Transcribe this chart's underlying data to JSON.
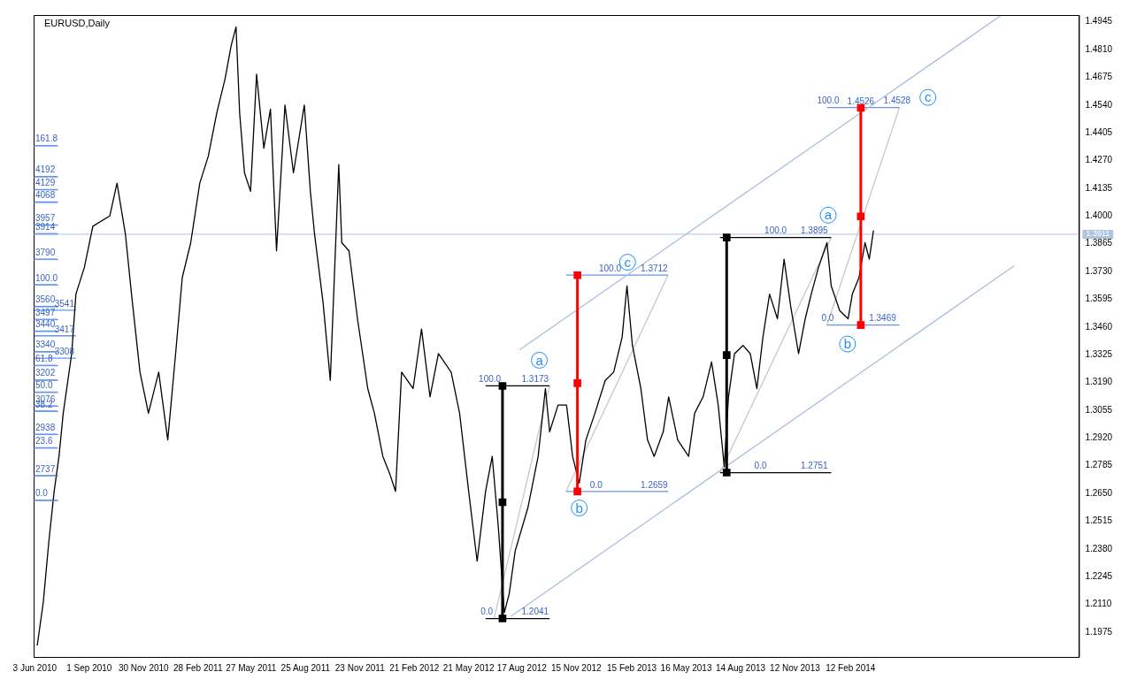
{
  "chart_data": {
    "type": "line",
    "title": "EURUSD,Daily",
    "legend": false,
    "grid": false,
    "marker": "none",
    "xlim": [
      "2010-06-01",
      "2015-02-25"
    ],
    "xticks": [
      {
        "value": "2010-06-03",
        "label": "3 Jun 2010"
      },
      {
        "value": "2010-09-01",
        "label": "1 Sep 2010"
      },
      {
        "value": "2010-11-30",
        "label": "30 Nov 2010"
      },
      {
        "value": "2011-02-28",
        "label": "28 Feb 2011"
      },
      {
        "value": "2011-05-27",
        "label": "27 May 2011"
      },
      {
        "value": "2011-08-25",
        "label": "25 Aug 2011"
      },
      {
        "value": "2011-11-23",
        "label": "23 Nov 2011"
      },
      {
        "value": "2012-02-21",
        "label": "21 Feb 2012"
      },
      {
        "value": "2012-05-21",
        "label": "21 May 2012"
      },
      {
        "value": "2012-08-17",
        "label": "17 Aug 2012"
      },
      {
        "value": "2012-11-15",
        "label": "15 Nov 2012"
      },
      {
        "value": "2013-02-15",
        "label": "15 Feb 2013"
      },
      {
        "value": "2013-05-16",
        "label": "16 May 2013"
      },
      {
        "value": "2013-08-14",
        "label": "14 Aug 2013"
      },
      {
        "value": "2013-11-12",
        "label": "12 Nov 2013"
      },
      {
        "value": "2014-02-12",
        "label": "12 Feb 2014"
      }
    ],
    "ylim": [
      1.1854,
      1.4978
    ],
    "yticks": [
      {
        "value": 1.1975,
        "label": "1.1975"
      },
      {
        "value": 1.211,
        "label": "1.2110"
      },
      {
        "value": 1.2245,
        "label": "1.2245"
      },
      {
        "value": 1.238,
        "label": "1.2380"
      },
      {
        "value": 1.2515,
        "label": "1.2515"
      },
      {
        "value": 1.265,
        "label": "1.2650"
      },
      {
        "value": 1.2785,
        "label": "1.2785"
      },
      {
        "value": 1.292,
        "label": "1.2920"
      },
      {
        "value": 1.3055,
        "label": "1.3055"
      },
      {
        "value": 1.319,
        "label": "1.3190"
      },
      {
        "value": 1.3325,
        "label": "1.3325"
      },
      {
        "value": 1.346,
        "label": "1.3460"
      },
      {
        "value": 1.3595,
        "label": "1.3595"
      },
      {
        "value": 1.373,
        "label": "1.3730"
      },
      {
        "value": 1.3865,
        "label": "1.3865"
      },
      {
        "value": 1.4,
        "label": "1.4000"
      },
      {
        "value": 1.4135,
        "label": "1.4135"
      },
      {
        "value": 1.427,
        "label": "1.4270"
      },
      {
        "value": 1.4405,
        "label": "1.4405"
      },
      {
        "value": 1.454,
        "label": "1.4540"
      },
      {
        "value": 1.4675,
        "label": "1.4675"
      },
      {
        "value": 1.481,
        "label": "1.4810"
      },
      {
        "value": 1.4945,
        "label": "1.4945"
      }
    ],
    "series": [
      {
        "color": "#000000",
        "x": [
          "2010-06-07",
          "2010-06-17",
          "2010-06-26",
          "2010-07-05",
          "2010-07-13",
          "2010-07-20",
          "2010-08-03",
          "2010-08-10",
          "2010-08-24",
          "2010-09-07",
          "2010-10-05",
          "2010-10-17",
          "2010-10-31",
          "2010-11-10",
          "2010-11-24",
          "2010-12-08",
          "2010-12-25",
          "2011-01-09",
          "2011-01-22",
          "2011-02-02",
          "2011-02-16",
          "2011-03-03",
          "2011-03-17",
          "2011-03-31",
          "2011-04-14",
          "2011-04-24",
          "2011-05-02",
          "2011-05-08",
          "2011-05-16",
          "2011-05-26",
          "2011-06-05",
          "2011-06-17",
          "2011-06-28",
          "2011-07-08",
          "2011-07-22",
          "2011-08-05",
          "2011-08-23",
          "2011-09-02",
          "2011-09-09",
          "2011-09-23",
          "2011-10-05",
          "2011-10-19",
          "2011-10-24",
          "2011-11-05",
          "2011-11-19",
          "2011-12-06",
          "2011-12-17",
          "2011-12-31",
          "2012-01-12",
          "2012-01-21",
          "2012-01-31",
          "2012-02-19",
          "2012-03-04",
          "2012-03-18",
          "2012-04-01",
          "2012-04-22",
          "2012-05-06",
          "2012-05-21",
          "2012-06-04",
          "2012-06-18",
          "2012-06-29",
          "2012-07-09",
          "2012-07-19",
          "2012-07-27",
          "2012-08-06",
          "2012-08-27",
          "2012-09-13",
          "2012-09-25",
          "2012-10-02",
          "2012-10-16",
          "2012-10-30",
          "2012-11-09",
          "2012-11-20",
          "2012-12-01",
          "2012-12-16",
          "2013-01-02",
          "2013-01-16",
          "2013-01-30",
          "2013-02-07",
          "2013-02-16",
          "2013-03-02",
          "2013-03-13",
          "2013-03-24",
          "2013-04-08",
          "2013-04-17",
          "2013-05-02",
          "2013-05-20",
          "2013-05-30",
          "2013-06-13",
          "2013-06-27",
          "2013-07-08",
          "2013-07-18",
          "2013-07-25",
          "2013-08-04",
          "2013-08-18",
          "2013-08-30",
          "2013-09-10",
          "2013-09-20",
          "2013-10-01",
          "2013-10-14",
          "2013-10-25",
          "2013-11-05",
          "2013-11-18",
          "2013-11-29",
          "2013-12-09",
          "2013-12-21",
          "2014-01-04",
          "2014-01-11",
          "2014-01-25",
          "2014-02-08",
          "2014-02-15",
          "2014-02-26",
          "2014-03-08",
          "2014-03-15",
          "2014-03-22"
        ],
        "values": [
          1.191,
          1.212,
          1.241,
          1.266,
          1.283,
          1.304,
          1.333,
          1.362,
          1.375,
          1.395,
          1.4,
          1.416,
          1.391,
          1.362,
          1.324,
          1.304,
          1.324,
          1.291,
          1.333,
          1.37,
          1.387,
          1.416,
          1.429,
          1.45,
          1.467,
          1.483,
          1.492,
          1.45,
          1.421,
          1.412,
          1.469,
          1.433,
          1.452,
          1.383,
          1.454,
          1.421,
          1.454,
          1.412,
          1.391,
          1.358,
          1.32,
          1.425,
          1.387,
          1.383,
          1.35,
          1.316,
          1.304,
          1.283,
          1.274,
          1.266,
          1.324,
          1.316,
          1.345,
          1.312,
          1.333,
          1.324,
          1.304,
          1.266,
          1.232,
          1.266,
          1.283,
          1.249,
          1.207,
          1.216,
          1.237,
          1.258,
          1.283,
          1.316,
          1.295,
          1.308,
          1.308,
          1.283,
          1.27,
          1.291,
          1.304,
          1.32,
          1.324,
          1.341,
          1.366,
          1.337,
          1.316,
          1.291,
          1.283,
          1.295,
          1.312,
          1.291,
          1.283,
          1.304,
          1.312,
          1.329,
          1.308,
          1.278,
          1.312,
          1.333,
          1.337,
          1.333,
          1.316,
          1.341,
          1.362,
          1.35,
          1.379,
          1.356,
          1.333,
          1.35,
          1.362,
          1.375,
          1.387,
          1.366,
          1.354,
          1.35,
          1.362,
          1.37,
          1.387,
          1.379,
          1.393
        ]
      },
      {
        "type": "line",
        "color": "#a9bde0",
        "x": [
          "2012-08-13",
          "2014-10-20"
        ],
        "values": [
          1.3348,
          1.4978
        ]
      },
      {
        "type": "line",
        "color": "#a9bde0",
        "x": [
          "2012-07-30",
          "2014-11-10"
        ],
        "values": [
          1.2052,
          1.3758
        ]
      },
      {
        "type": "line",
        "color": "#000000",
        "x": [
          "2012-06-18",
          "2012-10-02"
        ],
        "values": [
          1.3173,
          1.3173
        ]
      },
      {
        "type": "line",
        "color": "#000000",
        "x": [
          "2012-06-18",
          "2012-10-02"
        ],
        "values": [
          1.2041,
          1.2041
        ]
      },
      {
        "type": "line",
        "color": "#c8c8c8",
        "x": [
          "2012-07-02",
          "2012-10-02"
        ],
        "values": [
          1.2041,
          1.3173
        ]
      },
      {
        "type": "line",
        "color": "#000000",
        "marker": "square",
        "x": [
          "2012-07-16",
          "2012-07-16",
          "2012-07-16"
        ],
        "values": [
          1.2041,
          1.2607,
          1.3173
        ]
      },
      {
        "type": "line",
        "color": "#6495ed",
        "x": [
          "2012-10-29",
          "2013-04-16"
        ],
        "values": [
          1.3712,
          1.3712
        ]
      },
      {
        "type": "line",
        "color": "#6495ed",
        "x": [
          "2012-10-29",
          "2013-04-16"
        ],
        "values": [
          1.2659,
          1.2659
        ]
      },
      {
        "type": "line",
        "color": "#c8c8c8",
        "x": [
          "2012-10-29",
          "2013-04-16"
        ],
        "values": [
          1.2659,
          1.3712
        ]
      },
      {
        "type": "line",
        "color": "#ff0000",
        "marker": "square",
        "x": [
          "2012-11-17",
          "2012-11-17",
          "2012-11-17"
        ],
        "values": [
          1.2659,
          1.3186,
          1.3712
        ]
      },
      {
        "type": "line",
        "color": "#000000",
        "x": [
          "2013-07-11",
          "2014-01-11"
        ],
        "values": [
          1.3895,
          1.3895
        ]
      },
      {
        "type": "line",
        "color": "#000000",
        "x": [
          "2013-07-11",
          "2014-01-11"
        ],
        "values": [
          1.2751,
          1.2751
        ]
      },
      {
        "type": "line",
        "color": "#c8c8c8",
        "x": [
          "2013-07-11",
          "2014-01-11"
        ],
        "values": [
          1.2751,
          1.3895
        ]
      },
      {
        "type": "line",
        "color": "#000000",
        "marker": "square",
        "x": [
          "2013-07-22",
          "2013-07-22",
          "2013-07-22"
        ],
        "values": [
          1.2751,
          1.3323,
          1.3895
        ]
      },
      {
        "type": "line",
        "color": "#6495ed",
        "x": [
          "2014-01-04",
          "2014-05-04"
        ],
        "values": [
          1.4528,
          1.4528
        ]
      },
      {
        "type": "line",
        "color": "#6495ed",
        "x": [
          "2014-01-04",
          "2014-05-04"
        ],
        "values": [
          1.3469,
          1.3469
        ]
      },
      {
        "type": "line",
        "color": "#c8c8c8",
        "x": [
          "2014-01-04",
          "2014-05-04"
        ],
        "values": [
          1.3469,
          1.4528
        ]
      },
      {
        "type": "line",
        "color": "#ff0000",
        "marker": "square",
        "x": [
          "2014-03-01",
          "2014-03-01",
          "2014-03-01"
        ],
        "values": [
          1.3469,
          1.3998,
          1.4526
        ]
      },
      {
        "type": "line",
        "color": "#6495ed",
        "x": [
          "2010-06-01",
          "2010-07-10"
        ],
        "values": [
          1.4343,
          1.4343
        ]
      },
      {
        "type": "line",
        "color": "#6495ed",
        "x": [
          "2010-06-01",
          "2010-07-10"
        ],
        "values": [
          1.4192,
          1.4192
        ]
      },
      {
        "type": "line",
        "color": "#6495ed",
        "x": [
          "2010-06-01",
          "2010-07-10"
        ],
        "values": [
          1.4129,
          1.4129
        ]
      },
      {
        "type": "line",
        "color": "#6495ed",
        "x": [
          "2010-06-01",
          "2010-07-10"
        ],
        "values": [
          1.4068,
          1.4068
        ]
      },
      {
        "type": "line",
        "color": "#6495ed",
        "x": [
          "2010-06-01",
          "2010-07-10"
        ],
        "values": [
          1.3957,
          1.3957
        ]
      },
      {
        "type": "line",
        "color": "#6495ed",
        "x": [
          "2010-06-01",
          "2010-07-10"
        ],
        "values": [
          1.3914,
          1.3914
        ]
      },
      {
        "type": "line",
        "color": "#6495ed",
        "x": [
          "2010-06-01",
          "2010-07-10"
        ],
        "values": [
          1.379,
          1.379
        ]
      },
      {
        "type": "line",
        "color": "#6495ed",
        "x": [
          "2010-06-01",
          "2010-07-10"
        ],
        "values": [
          1.3666,
          1.3666
        ]
      },
      {
        "type": "line",
        "color": "#6495ed",
        "x": [
          "2010-06-01",
          "2010-07-10"
        ],
        "values": [
          1.356,
          1.356
        ]
      },
      {
        "type": "line",
        "color": "#6495ed",
        "x": [
          "2010-06-01",
          "2010-08-10"
        ],
        "values": [
          1.3541,
          1.3541
        ]
      },
      {
        "type": "line",
        "color": "#6495ed",
        "x": [
          "2010-06-01",
          "2010-07-10"
        ],
        "values": [
          1.3497,
          1.3497
        ]
      },
      {
        "type": "line",
        "color": "#6495ed",
        "x": [
          "2010-06-01",
          "2010-07-10"
        ],
        "values": [
          1.344,
          1.344
        ]
      },
      {
        "type": "line",
        "color": "#6495ed",
        "x": [
          "2010-06-01",
          "2010-08-10"
        ],
        "values": [
          1.3417,
          1.3417
        ]
      },
      {
        "type": "line",
        "color": "#6495ed",
        "x": [
          "2010-06-01",
          "2010-07-10"
        ],
        "values": [
          1.334,
          1.334
        ]
      },
      {
        "type": "line",
        "color": "#6495ed",
        "x": [
          "2010-06-01",
          "2010-08-10"
        ],
        "values": [
          1.3308,
          1.3308
        ]
      },
      {
        "type": "line",
        "color": "#6495ed",
        "x": [
          "2010-06-01",
          "2010-07-10"
        ],
        "values": [
          1.3273,
          1.3273
        ]
      },
      {
        "type": "line",
        "color": "#6495ed",
        "x": [
          "2010-06-01",
          "2010-07-10"
        ],
        "values": [
          1.3202,
          1.3202
        ]
      },
      {
        "type": "line",
        "color": "#6495ed",
        "x": [
          "2010-06-01",
          "2010-07-10"
        ],
        "values": [
          1.3143,
          1.3143
        ]
      },
      {
        "type": "line",
        "color": "#6495ed",
        "x": [
          "2010-06-01",
          "2010-07-10"
        ],
        "values": [
          1.3076,
          1.3076
        ]
      },
      {
        "type": "line",
        "color": "#6495ed",
        "x": [
          "2010-06-01",
          "2010-07-10"
        ],
        "values": [
          1.3051,
          1.3051
        ]
      },
      {
        "type": "line",
        "color": "#6495ed",
        "x": [
          "2010-06-01",
          "2010-07-10"
        ],
        "values": [
          1.2938,
          1.2938
        ]
      },
      {
        "type": "line",
        "color": "#6495ed",
        "x": [
          "2010-06-01",
          "2010-07-10"
        ],
        "values": [
          1.2872,
          1.2872
        ]
      },
      {
        "type": "line",
        "color": "#6495ed",
        "x": [
          "2010-06-01",
          "2010-07-10"
        ],
        "values": [
          1.2737,
          1.2737
        ]
      },
      {
        "type": "line",
        "color": "#6495ed",
        "x": [
          "2010-06-01",
          "2010-07-10"
        ],
        "values": [
          1.2617,
          1.2617
        ]
      }
    ],
    "ref_lines": [
      {
        "axis": "y",
        "value": 1.3911,
        "label": "1.3911",
        "color": "#b0c4de"
      }
    ],
    "annotations": [
      {
        "text": "100.0",
        "x": "2012-06-25",
        "y": 1.3173
      },
      {
        "text": "1.3173",
        "x": "2012-09-08",
        "y": 1.3173
      },
      {
        "text": "0.0",
        "x": "2012-06-20",
        "y": 1.2041
      },
      {
        "text": "1.2041",
        "x": "2012-09-08",
        "y": 1.2041
      },
      {
        "text": "100.0",
        "x": "2013-01-10",
        "y": 1.3712
      },
      {
        "text": "1.3712",
        "x": "2013-03-24",
        "y": 1.3712
      },
      {
        "text": "0.0",
        "x": "2012-12-18",
        "y": 1.2659
      },
      {
        "text": "1.2659",
        "x": "2013-03-24",
        "y": 1.2659
      },
      {
        "text": "100.0",
        "x": "2013-10-11",
        "y": 1.3895
      },
      {
        "text": "1.3895",
        "x": "2013-12-14",
        "y": 1.3895
      },
      {
        "text": "0.0",
        "x": "2013-09-16",
        "y": 1.2751
      },
      {
        "text": "1.2751",
        "x": "2013-12-14",
        "y": 1.2751
      },
      {
        "text": "100.0",
        "x": "2014-01-06",
        "y": 1.4528
      },
      {
        "text": "1.4528",
        "x": "2014-04-30",
        "y": 1.4528
      },
      {
        "text": "0.0",
        "x": "2014-01-05",
        "y": 1.3469
      },
      {
        "text": "1.3469",
        "x": "2014-04-06",
        "y": 1.3469
      },
      {
        "text": "1.4526",
        "x": "2014-03-01",
        "y": 1.4526
      },
      {
        "text": "a",
        "x": "2012-09-15",
        "y": 1.3298
      },
      {
        "text": "b",
        "x": "2012-11-20",
        "y": 1.2579
      },
      {
        "text": "c",
        "x": "2013-02-08",
        "y": 1.3775
      },
      {
        "text": "a",
        "x": "2014-01-06",
        "y": 1.4004
      },
      {
        "text": "b",
        "x": "2014-02-07",
        "y": 1.3377
      },
      {
        "text": "c",
        "x": "2014-06-20",
        "y": 1.4577
      },
      {
        "text": "161.8",
        "x": "2010-06-01",
        "y": 1.4343
      },
      {
        "text": "4192",
        "x": "2010-06-01",
        "y": 1.4192
      },
      {
        "text": "4129",
        "x": "2010-06-01",
        "y": 1.4129
      },
      {
        "text": "4068",
        "x": "2010-06-01",
        "y": 1.4068
      },
      {
        "text": "3957",
        "x": "2010-06-01",
        "y": 1.3957
      },
      {
        "text": "3914",
        "x": "2010-06-01",
        "y": 1.3914
      },
      {
        "text": "3790",
        "x": "2010-06-01",
        "y": 1.379
      },
      {
        "text": "100.0",
        "x": "2010-06-01",
        "y": 1.3666
      },
      {
        "text": "3560",
        "x": "2010-06-01",
        "y": 1.356
      },
      {
        "text": "3541",
        "x": "2010-07-22",
        "y": 1.3541
      },
      {
        "text": "3497",
        "x": "2010-06-01",
        "y": 1.3497
      },
      {
        "text": "3440",
        "x": "2010-06-01",
        "y": 1.344
      },
      {
        "text": "3417",
        "x": "2010-07-22",
        "y": 1.3417
      },
      {
        "text": "3340",
        "x": "2010-06-01",
        "y": 1.334
      },
      {
        "text": "3308",
        "x": "2010-07-22",
        "y": 1.3308
      },
      {
        "text": "61.8",
        "x": "2010-06-01",
        "y": 1.3273
      },
      {
        "text": "3202",
        "x": "2010-06-01",
        "y": 1.3202
      },
      {
        "text": "50.0",
        "x": "2010-06-01",
        "y": 1.3143
      },
      {
        "text": "3076",
        "x": "2010-06-01",
        "y": 1.3076
      },
      {
        "text": "38.2",
        "x": "2010-06-01",
        "y": 1.3051
      },
      {
        "text": "2938",
        "x": "2010-06-01",
        "y": 1.2938
      },
      {
        "text": "23.6",
        "x": "2010-06-01",
        "y": 1.2872
      },
      {
        "text": "2737",
        "x": "2010-06-01",
        "y": 1.2737
      },
      {
        "text": "0.0",
        "x": "2010-06-01",
        "y": 1.2617
      }
    ]
  }
}
